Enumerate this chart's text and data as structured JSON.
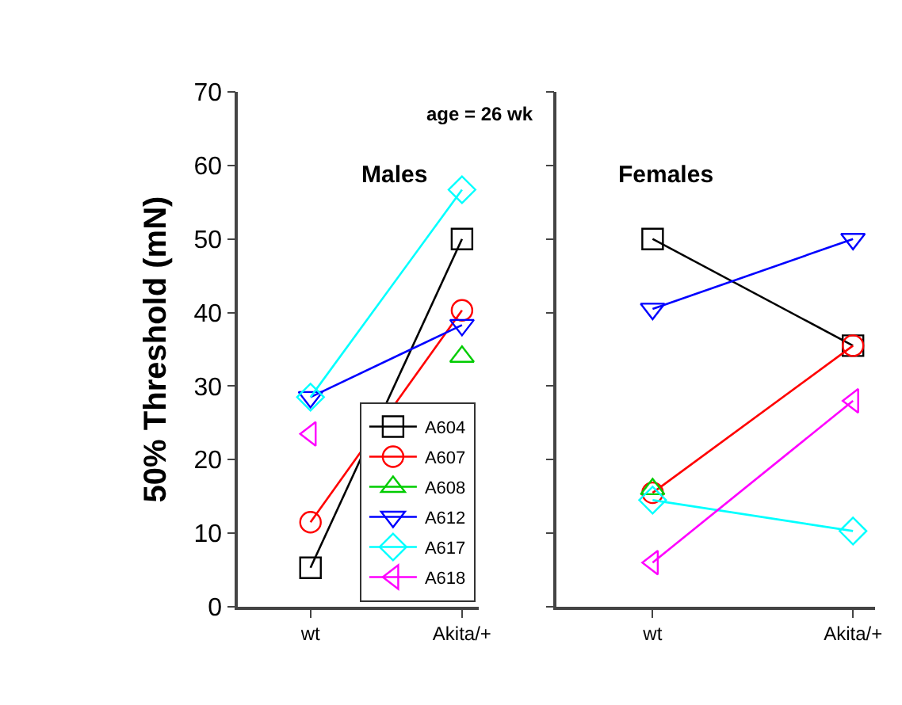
{
  "chart_data": [
    {
      "type": "line",
      "title": "Males",
      "ylabel": "50% Threshold (mN)",
      "categories": [
        "wt",
        "Akita/+"
      ],
      "ylim": [
        0,
        70
      ],
      "yticks": [
        0,
        10,
        20,
        30,
        40,
        50,
        60,
        70
      ],
      "annotations": [
        "age = 26 wk"
      ],
      "legend": "bottom right",
      "series": [
        {
          "name": "A604",
          "color": "#000000",
          "marker": "square",
          "values": [
            5.3,
            50
          ]
        },
        {
          "name": "A607",
          "color": "#ff0000",
          "marker": "circle",
          "values": [
            11.5,
            40.3
          ]
        },
        {
          "name": "A608",
          "color": "#00cc00",
          "marker": "triangle",
          "values": [
            null,
            34
          ]
        },
        {
          "name": "A612",
          "color": "#0000ff",
          "marker": "triangle-down",
          "values": [
            28.5,
            38.3
          ]
        },
        {
          "name": "A617",
          "color": "#00ffff",
          "marker": "diamond",
          "values": [
            28.5,
            56.7
          ]
        },
        {
          "name": "A618",
          "color": "#ff00ff",
          "marker": "triangle-left",
          "values": [
            23.5,
            null
          ]
        }
      ]
    },
    {
      "type": "line",
      "title": "Females",
      "categories": [
        "wt",
        "Akita/+"
      ],
      "ylim": [
        0,
        70
      ],
      "yticks": [
        0,
        10,
        20,
        30,
        40,
        50,
        60,
        70
      ],
      "tick_labels": "x",
      "legend": false,
      "series": [
        {
          "color": "#000000",
          "marker": "square",
          "values": [
            50,
            35.5
          ]
        },
        {
          "color": "#ff0000",
          "marker": "circle",
          "values": [
            15.5,
            35.5
          ]
        },
        {
          "color": "#00cc00",
          "marker": "triangle",
          "values": [
            16,
            null
          ]
        },
        {
          "color": "#0000ff",
          "marker": "triangle-down",
          "values": [
            40.5,
            50
          ]
        },
        {
          "color": "#00ffff",
          "marker": "diamond",
          "values": [
            14.5,
            10.3
          ]
        },
        {
          "color": "#ff00ff",
          "marker": "triangle-left",
          "values": [
            6,
            28
          ]
        }
      ]
    }
  ]
}
